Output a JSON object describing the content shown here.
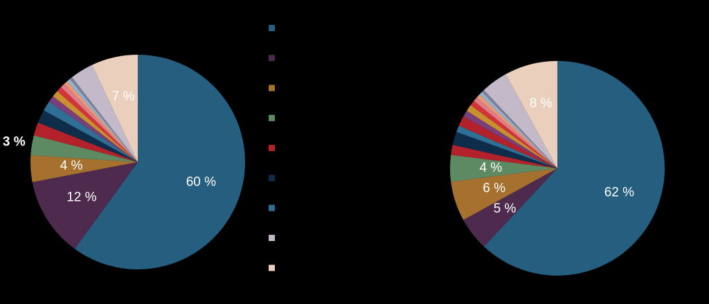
{
  "chart_data": [
    {
      "type": "pie",
      "values": [
        60,
        12,
        4,
        3,
        2,
        2,
        1.5,
        1,
        1,
        0.8,
        0.7,
        0.6,
        0.5,
        0.4,
        3.5,
        7
      ],
      "value_labels": [
        "60 %",
        "12 %",
        "4 %",
        "3 %",
        null,
        null,
        null,
        null,
        null,
        null,
        null,
        null,
        null,
        null,
        null,
        "7 %"
      ],
      "colors": [
        "#255e7e",
        "#4e2a4f",
        "#a6712e",
        "#5d8a62",
        "#b3222a",
        "#0e2d4a",
        "#2f6f95",
        "#7a3e7a",
        "#c8902e",
        "#d2343a",
        "#e07d86",
        "#e69a7a",
        "#8fb4d0",
        "#7f7f9a",
        "#c3b9c8",
        "#e9cfbc"
      ]
    },
    {
      "type": "pie",
      "values": [
        62,
        5,
        6,
        4,
        1.5,
        2,
        1,
        1.5,
        1,
        1,
        0.8,
        0.7,
        0.6,
        0.5,
        0.4,
        4,
        8
      ],
      "value_labels": [
        "62 %",
        "5 %",
        "6 %",
        "4 %",
        null,
        null,
        null,
        null,
        null,
        null,
        null,
        null,
        null,
        null,
        null,
        null,
        "8 %"
      ],
      "colors": [
        "#255e7e",
        "#4e2a4f",
        "#a6712e",
        "#5d8a62",
        "#b3222a",
        "#0e2d4a",
        "#2f6f95",
        "#b3222a",
        "#7a3e7a",
        "#c8902e",
        "#d2343a",
        "#e07d86",
        "#e69a7a",
        "#8fb4d0",
        "#7f7f9a",
        "#c3b9c8",
        "#e9cfbc"
      ]
    }
  ],
  "legend": {
    "colors": [
      "#255e7e",
      "#4e2a4f",
      "#a6712e",
      "#5d8a62",
      "#b3222a",
      "#0e2d4a",
      "#2f6f95",
      "#c3b9c8",
      "#e9cfbc"
    ]
  }
}
